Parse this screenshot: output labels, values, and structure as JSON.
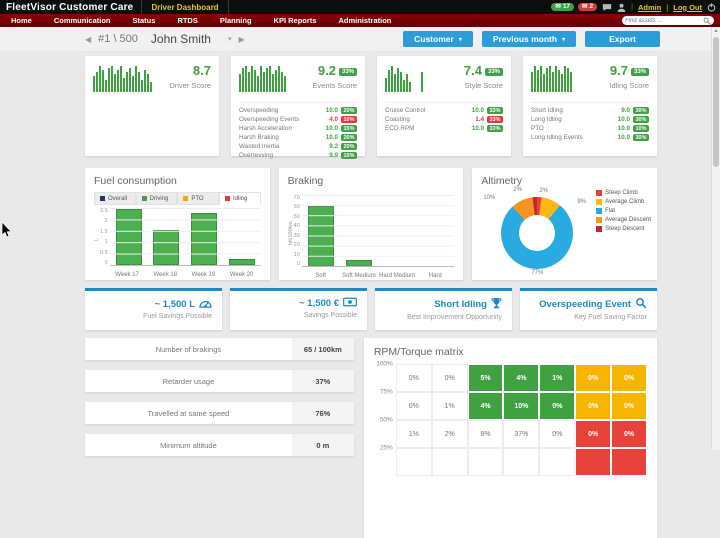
{
  "topbar": {
    "brand": "FleetVisor Customer Care",
    "active_dashboard": "Driver Dashboard",
    "badges": [
      {
        "icon": "mail-icon",
        "count": "17",
        "color": "#3fa142"
      },
      {
        "icon": "mail-icon",
        "count": "2",
        "color": "#d43f3a"
      }
    ],
    "admin_label": "Admin",
    "logout_label": "Log Out"
  },
  "menubar": {
    "items": [
      "Home",
      "Communication",
      "Status",
      "RTDS",
      "Planning",
      "KPI Reports",
      "Administration"
    ],
    "search_placeholder": "Find assets ..."
  },
  "toolbar": {
    "driver_index": "#1 \\ 500",
    "driver_name": "John Smith",
    "customer_button": "Customer",
    "period_button": "Previous month",
    "export_button": "Export"
  },
  "scores": [
    {
      "value": "8.7",
      "label": "Driver Score",
      "weight": null,
      "spark": [
        16,
        20,
        26,
        22,
        12,
        24,
        26,
        18,
        22,
        26,
        14,
        20,
        24,
        16,
        26,
        20,
        12,
        22,
        18,
        10
      ],
      "metrics": []
    },
    {
      "value": "9.2",
      "label": "Events Score",
      "weight": "33%",
      "spark": [
        18,
        24,
        26,
        20,
        26,
        22,
        16,
        26,
        20,
        24,
        26,
        18,
        22,
        26,
        20,
        16
      ],
      "metrics": [
        {
          "name": "Overspeeding",
          "value": "10.0",
          "pct": "20%",
          "bad": false
        },
        {
          "name": "Overspeeding Events",
          "value": "4.0",
          "pct": "10%",
          "bad": true
        },
        {
          "name": "Harsh Acceleration",
          "value": "10.0",
          "pct": "15%",
          "bad": false
        },
        {
          "name": "Harsh Braking",
          "value": "10.0",
          "pct": "20%",
          "bad": false
        },
        {
          "name": "Wasted Inertia",
          "value": "9.2",
          "pct": "20%",
          "bad": false
        },
        {
          "name": "Overrevving",
          "value": "9.9",
          "pct": "15%",
          "bad": false
        }
      ]
    },
    {
      "value": "7.4",
      "label": "Style Score",
      "weight": "33%",
      "spark": [
        14,
        22,
        26,
        18,
        24,
        20,
        12,
        18,
        10,
        0,
        0,
        0,
        20
      ],
      "metrics": [
        {
          "name": "Cruise Control",
          "value": "10.0",
          "pct": "33%",
          "bad": false
        },
        {
          "name": "Coasting",
          "value": "1.4",
          "pct": "33%",
          "bad": true
        },
        {
          "name": "ECO RPM",
          "value": "10.0",
          "pct": "33%",
          "bad": false
        }
      ]
    },
    {
      "value": "9.7",
      "label": "Idling Score",
      "weight": "33%",
      "spark": [
        20,
        26,
        22,
        26,
        18,
        24,
        26,
        20,
        26,
        22,
        18,
        26,
        24,
        20
      ],
      "metrics": [
        {
          "name": "Short Idling",
          "value": "9.0",
          "pct": "30%",
          "bad": false
        },
        {
          "name": "Long Idling",
          "value": "10.0",
          "pct": "30%",
          "bad": false
        },
        {
          "name": "PTO",
          "value": "10.0",
          "pct": "10%",
          "bad": false
        },
        {
          "name": "Long Idling Events",
          "value": "10.0",
          "pct": "30%",
          "bad": false
        }
      ]
    }
  ],
  "fuel": {
    "title": "Fuel consumption",
    "tabs": [
      {
        "label": "Overall",
        "color": "#17375e",
        "active": false
      },
      {
        "label": "Driving",
        "color": "#3ea33e",
        "active": false
      },
      {
        "label": "PTO",
        "color": "#f0ad00",
        "active": false
      },
      {
        "label": "Idling",
        "color": "#e23b3b",
        "active": true
      }
    ],
    "chart": {
      "type": "bar",
      "ylabel": "L",
      "ymax": 2.5,
      "yticks": [
        "2.5",
        "2",
        "1.5",
        "1",
        "0.5",
        "0"
      ],
      "categories": [
        "Week 17",
        "Week 18",
        "Week 19",
        "Week 20"
      ],
      "values": [
        2.4,
        1.5,
        2.25,
        0.25
      ]
    }
  },
  "braking": {
    "title": "Braking",
    "chart": {
      "type": "bar",
      "ylabel": "hit/100km",
      "ymax": 70,
      "yticks": [
        "70",
        "60",
        "50",
        "40",
        "30",
        "20",
        "10",
        "0"
      ],
      "categories": [
        "Soft",
        "Soft Medium",
        "Hard Medium",
        "Hard"
      ],
      "values": [
        58,
        6,
        0,
        0
      ]
    }
  },
  "altimetry": {
    "title": "Altimetry",
    "chart": {
      "type": "pie",
      "slices": [
        {
          "label": "Steep Climb",
          "pct": 2,
          "color": "#e8432e"
        },
        {
          "label": "Average Climb",
          "pct": 9,
          "color": "#fdb813"
        },
        {
          "label": "Flat",
          "pct": 77,
          "color": "#29abe2"
        },
        {
          "label": "Average Descent",
          "pct": 10,
          "color": "#f7941e"
        },
        {
          "label": "Steep Descent",
          "pct": 2,
          "color": "#c1272d"
        }
      ]
    }
  },
  "kpis": [
    {
      "value": "~ 1,500 L",
      "label": "Fuel Savings Possible",
      "icon": "fuel-gauge-icon"
    },
    {
      "value": "~ 1,500 €",
      "label": "Savings Possible",
      "icon": "banknote-icon"
    },
    {
      "value": "Short Idling",
      "label": "Best Improvement Opportunity",
      "icon": "trophy-icon"
    },
    {
      "value": "Overspeeding Event",
      "label": "Key Fuel Saving Factor",
      "icon": "magnifier-icon"
    }
  ],
  "stats": [
    {
      "label": "Number of brakings",
      "value": "65 / 100km"
    },
    {
      "label": "Retarder usage",
      "value": "37%"
    },
    {
      "label": "Travelled at same speed",
      "value": "76%"
    },
    {
      "label": "Minimum altitude",
      "value": "0 m"
    }
  ],
  "matrix": {
    "title": "RPM/Torque matrix",
    "row_labels": [
      "100%",
      "75%",
      "50%",
      "25%"
    ],
    "rows": [
      [
        {
          "v": "0%",
          "c": "white"
        },
        {
          "v": "0%",
          "c": "white"
        },
        {
          "v": "5%",
          "c": "green"
        },
        {
          "v": "4%",
          "c": "green"
        },
        {
          "v": "1%",
          "c": "green"
        },
        {
          "v": "0%",
          "c": "yellow"
        },
        {
          "v": "0%",
          "c": "yellow"
        }
      ],
      [
        {
          "v": "0%",
          "c": "white"
        },
        {
          "v": "1%",
          "c": "white"
        },
        {
          "v": "4%",
          "c": "green"
        },
        {
          "v": "10%",
          "c": "green"
        },
        {
          "v": "0%",
          "c": "green"
        },
        {
          "v": "0%",
          "c": "yellow"
        },
        {
          "v": "0%",
          "c": "yellow"
        }
      ],
      [
        {
          "v": "1%",
          "c": "white"
        },
        {
          "v": "2%",
          "c": "white"
        },
        {
          "v": "8%",
          "c": "white"
        },
        {
          "v": "37%",
          "c": "white"
        },
        {
          "v": "0%",
          "c": "white"
        },
        {
          "v": "0%",
          "c": "red"
        },
        {
          "v": "0%",
          "c": "red"
        }
      ],
      [
        {
          "v": "",
          "c": "white"
        },
        {
          "v": "",
          "c": "white"
        },
        {
          "v": "",
          "c": "white"
        },
        {
          "v": "",
          "c": "white"
        },
        {
          "v": "",
          "c": "white"
        },
        {
          "v": "",
          "c": "red"
        },
        {
          "v": "",
          "c": "red"
        }
      ]
    ]
  }
}
